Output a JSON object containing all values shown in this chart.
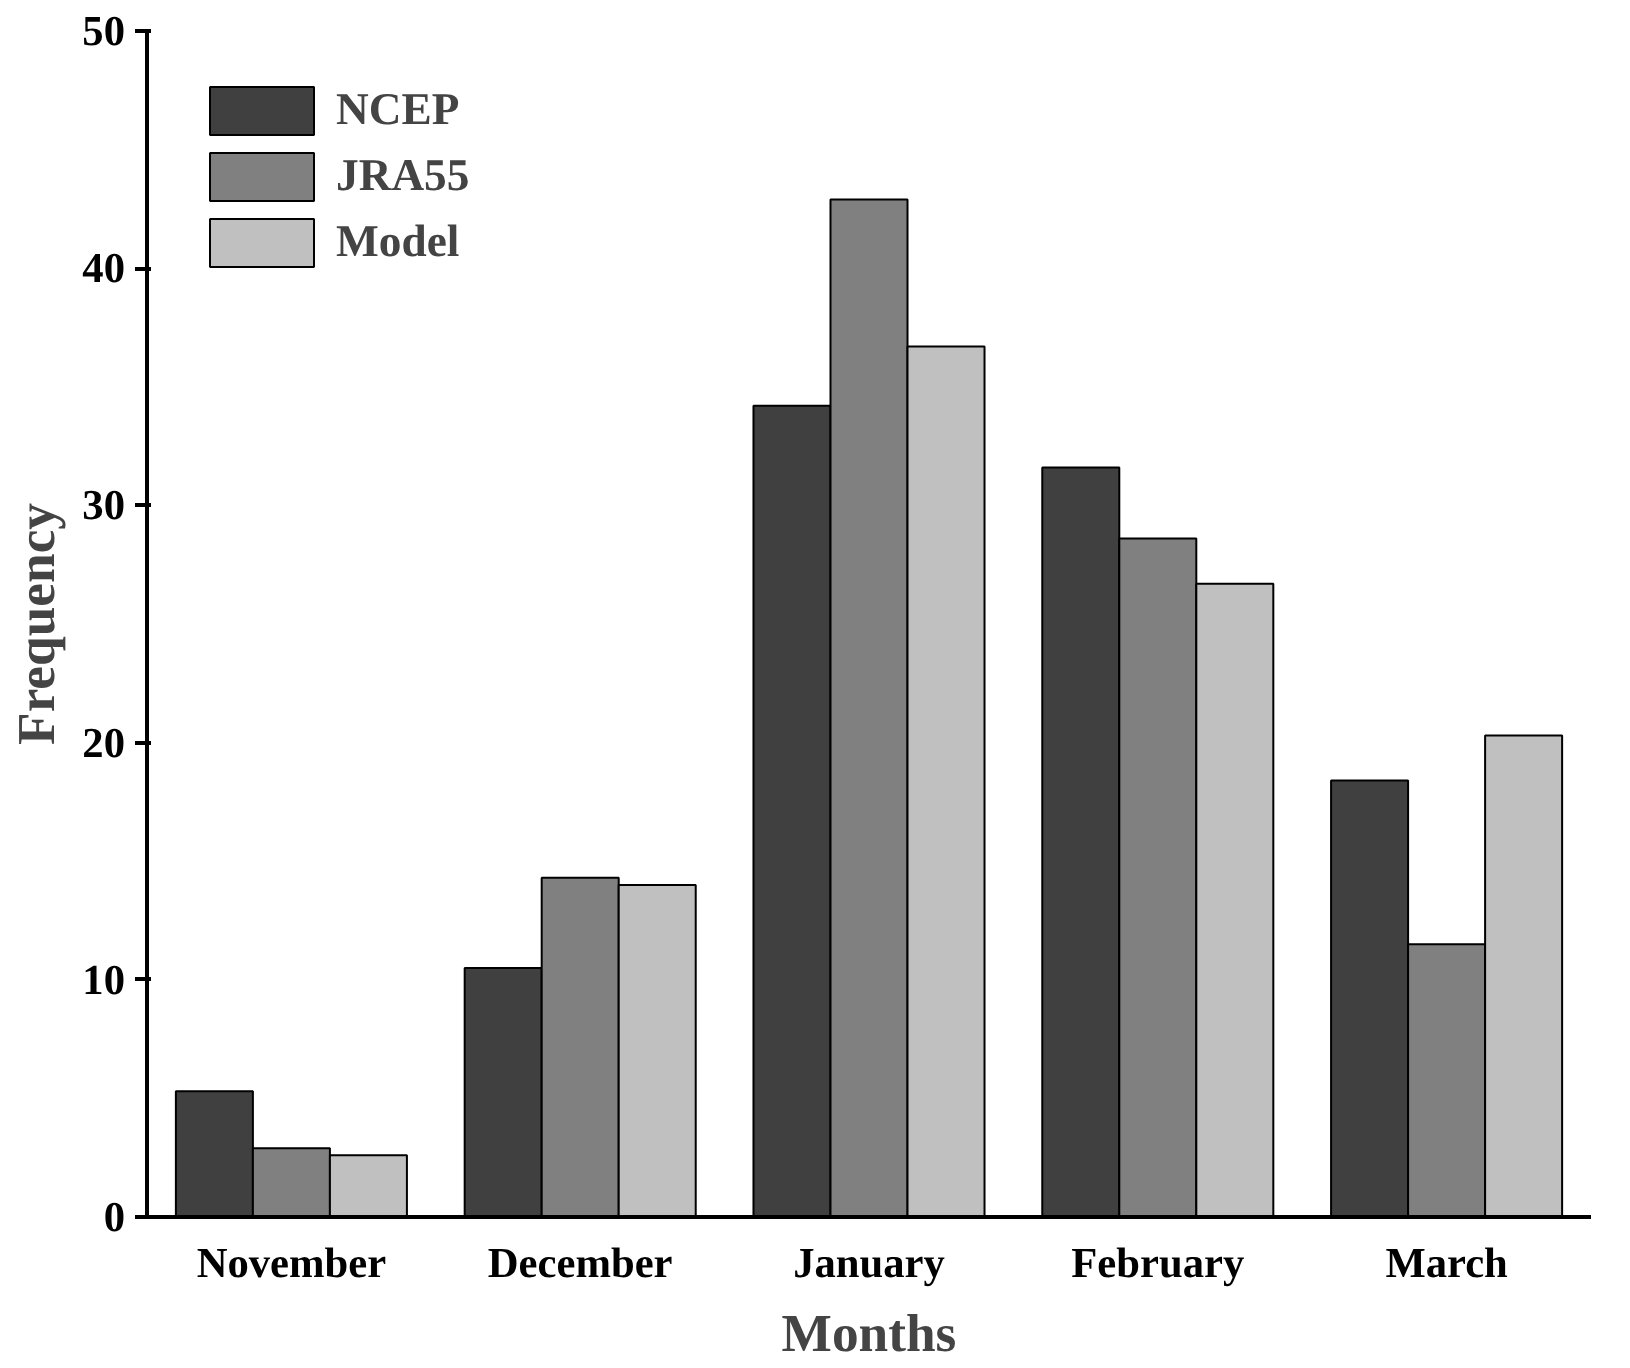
{
  "chart_data": {
    "type": "bar",
    "xlabel": "Months",
    "ylabel": "Frequency",
    "categories": [
      "November",
      "December",
      "January",
      "February",
      "March"
    ],
    "series": [
      {
        "name": "NCEP",
        "color": "#404040",
        "values": [
          5.3,
          10.5,
          34.2,
          31.6,
          18.4
        ]
      },
      {
        "name": "JRA55",
        "color": "#808080",
        "values": [
          2.9,
          14.3,
          42.9,
          28.6,
          11.5
        ]
      },
      {
        "name": "Model",
        "color": "#c0c0c0",
        "values": [
          2.6,
          14.0,
          36.7,
          26.7,
          20.3
        ]
      }
    ],
    "ylim": [
      0,
      50
    ],
    "yticks": [
      0,
      10,
      20,
      30,
      40,
      50
    ],
    "grid": false,
    "legend": "top left"
  }
}
